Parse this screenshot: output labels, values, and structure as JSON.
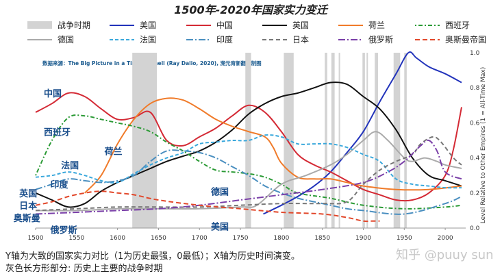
{
  "chart_data": {
    "type": "line",
    "title": "1500年-2020年国家实力变迁",
    "source_note": "数据来源：The Big Picture in a Tiny Nutshell (Ray Dalio, 2020), 溯元育新翻译制图",
    "ylabel": "Level Relative to Other Empires (1 = All-Time Max)",
    "xlim": [
      1500,
      2025
    ],
    "ylim": [
      0,
      1.0
    ],
    "x_ticks": [
      "1500",
      "1550",
      "1600",
      "1650",
      "1700",
      "1750",
      "1800",
      "1850",
      "1900",
      "1950",
      "2000"
    ],
    "y_ticks": [
      "0.0",
      "0.2",
      "0.4",
      "0.6",
      "0.8",
      "1.0"
    ],
    "war_legend_label": "战争时期",
    "war_periods": [
      [
        1618,
        1648
      ],
      [
        1756,
        1763
      ],
      [
        1803,
        1815
      ],
      [
        1853,
        1856
      ],
      [
        1861,
        1865
      ],
      [
        1870,
        1871
      ],
      [
        1899,
        1902
      ],
      [
        1904,
        1905
      ],
      [
        1914,
        1918
      ],
      [
        1937,
        1945
      ],
      [
        1950,
        1953
      ]
    ],
    "series": [
      {
        "name": "美国",
        "color": "#2233bb",
        "dash": "",
        "x": [
          1778,
          1800,
          1820,
          1840,
          1860,
          1880,
          1900,
          1920,
          1940,
          1955,
          1965,
          1980,
          2000,
          2020
        ],
        "y": [
          0.08,
          0.13,
          0.18,
          0.24,
          0.32,
          0.43,
          0.55,
          0.72,
          0.88,
          1.0,
          0.97,
          0.92,
          0.88,
          0.83
        ]
      },
      {
        "name": "中国",
        "color": "#d42a35",
        "dash": "",
        "x": [
          1500,
          1520,
          1540,
          1560,
          1580,
          1600,
          1620,
          1640,
          1660,
          1680,
          1700,
          1720,
          1740,
          1760,
          1780,
          1800,
          1820,
          1840,
          1860,
          1880,
          1900,
          1920,
          1940,
          1960,
          1980,
          2000,
          2010,
          2020
        ],
        "y": [
          0.66,
          0.71,
          0.77,
          0.75,
          0.68,
          0.62,
          0.63,
          0.66,
          0.5,
          0.47,
          0.52,
          0.57,
          0.64,
          0.7,
          0.66,
          0.55,
          0.42,
          0.36,
          0.32,
          0.27,
          0.22,
          0.19,
          0.16,
          0.16,
          0.2,
          0.3,
          0.45,
          0.69
        ]
      },
      {
        "name": "英国",
        "color": "#111111",
        "dash": "",
        "x": [
          1500,
          1520,
          1540,
          1560,
          1580,
          1600,
          1620,
          1640,
          1660,
          1680,
          1700,
          1720,
          1740,
          1760,
          1780,
          1800,
          1820,
          1840,
          1860,
          1880,
          1900,
          1920,
          1940,
          1960,
          1980,
          2000,
          2020
        ],
        "y": [
          0.2,
          0.16,
          0.12,
          0.14,
          0.21,
          0.26,
          0.3,
          0.34,
          0.38,
          0.41,
          0.44,
          0.49,
          0.56,
          0.65,
          0.71,
          0.75,
          0.77,
          0.8,
          0.83,
          0.82,
          0.75,
          0.68,
          0.56,
          0.4,
          0.3,
          0.27,
          0.24
        ]
      },
      {
        "name": "荷兰",
        "color": "#f07b2a",
        "dash": "",
        "x": [
          1560,
          1580,
          1600,
          1620,
          1640,
          1660,
          1680,
          1700,
          1720,
          1740,
          1760,
          1780,
          1790,
          1800,
          1820,
          1840,
          1860,
          1880,
          1900,
          1940,
          1980,
          2020
        ],
        "y": [
          0.2,
          0.3,
          0.48,
          0.62,
          0.71,
          0.74,
          0.73,
          0.68,
          0.62,
          0.58,
          0.55,
          0.52,
          0.46,
          0.37,
          0.29,
          0.28,
          0.28,
          0.26,
          0.24,
          0.22,
          0.22,
          0.24
        ]
      },
      {
        "name": "西班牙",
        "color": "#2a9a35",
        "dash": "2,3,6,3",
        "x": [
          1500,
          1520,
          1540,
          1560,
          1580,
          1600,
          1620,
          1640,
          1660,
          1680,
          1700,
          1720,
          1740,
          1760,
          1780,
          1800,
          1820,
          1860,
          1900,
          1950,
          2000,
          2020
        ],
        "y": [
          0.3,
          0.5,
          0.63,
          0.64,
          0.62,
          0.6,
          0.58,
          0.55,
          0.49,
          0.44,
          0.38,
          0.33,
          0.32,
          0.31,
          0.29,
          0.25,
          0.2,
          0.17,
          0.13,
          0.11,
          0.12,
          0.13
        ]
      },
      {
        "name": "德国",
        "color": "#aaaaaa",
        "dash": "",
        "x": [
          1500,
          1550,
          1600,
          1650,
          1700,
          1750,
          1770,
          1800,
          1830,
          1860,
          1880,
          1900,
          1915,
          1930,
          1950,
          1960,
          1975,
          1990,
          2000,
          2020
        ],
        "y": [
          0.1,
          0.1,
          0.11,
          0.11,
          0.11,
          0.12,
          0.13,
          0.25,
          0.3,
          0.36,
          0.42,
          0.5,
          0.55,
          0.5,
          0.4,
          0.38,
          0.4,
          0.38,
          0.36,
          0.34
        ]
      },
      {
        "name": "法国",
        "color": "#3aa8dc",
        "dash": "5,3",
        "x": [
          1500,
          1520,
          1540,
          1560,
          1580,
          1600,
          1620,
          1640,
          1660,
          1680,
          1700,
          1720,
          1740,
          1760,
          1780,
          1800,
          1820,
          1840,
          1860,
          1880,
          1900,
          1920,
          1940,
          1960,
          1980,
          2000,
          2020
        ],
        "y": [
          0.29,
          0.3,
          0.32,
          0.3,
          0.27,
          0.26,
          0.31,
          0.36,
          0.4,
          0.43,
          0.48,
          0.49,
          0.5,
          0.5,
          0.53,
          0.52,
          0.48,
          0.48,
          0.48,
          0.46,
          0.42,
          0.38,
          0.28,
          0.25,
          0.24,
          0.23,
          0.23
        ]
      },
      {
        "name": "印度",
        "color": "#4a8fc0",
        "dash": "10,3,2,3",
        "x": [
          1500,
          1520,
          1540,
          1560,
          1580,
          1600,
          1620,
          1640,
          1660,
          1680,
          1700,
          1720,
          1740,
          1760,
          1780,
          1800,
          1820,
          1840,
          1860,
          1880,
          1900,
          1950,
          2000,
          2020
        ],
        "y": [
          0.22,
          0.25,
          0.28,
          0.27,
          0.26,
          0.27,
          0.3,
          0.38,
          0.44,
          0.44,
          0.43,
          0.4,
          0.35,
          0.3,
          0.24,
          0.2,
          0.17,
          0.15,
          0.13,
          0.11,
          0.1,
          0.08,
          0.14,
          0.18
        ]
      },
      {
        "name": "日本",
        "color": "#777777",
        "dash": "6,4",
        "x": [
          1500,
          1550,
          1600,
          1650,
          1700,
          1750,
          1800,
          1850,
          1880,
          1900,
          1920,
          1940,
          1960,
          1970,
          1985,
          1995,
          2010,
          2020
        ],
        "y": [
          0.1,
          0.11,
          0.12,
          0.12,
          0.12,
          0.13,
          0.14,
          0.14,
          0.15,
          0.25,
          0.33,
          0.38,
          0.42,
          0.48,
          0.52,
          0.49,
          0.4,
          0.36
        ]
      },
      {
        "name": "俄罗斯",
        "color": "#7a3fa8",
        "dash": "10,3,2,3",
        "x": [
          1500,
          1550,
          1600,
          1650,
          1700,
          1750,
          1800,
          1850,
          1900,
          1930,
          1950,
          1970,
          1980,
          1990,
          2000,
          2020
        ],
        "y": [
          0.08,
          0.09,
          0.1,
          0.11,
          0.13,
          0.16,
          0.19,
          0.22,
          0.26,
          0.32,
          0.38,
          0.47,
          0.5,
          0.44,
          0.32,
          0.28
        ]
      },
      {
        "name": "奥斯曼帝国",
        "color": "#e2472a",
        "dash": "7,4",
        "x": [
          1500,
          1520,
          1540,
          1560,
          1580,
          1600,
          1620,
          1650,
          1700,
          1750,
          1800,
          1850,
          1880,
          1900,
          1910,
          1920
        ],
        "y": [
          0.13,
          0.15,
          0.18,
          0.2,
          0.21,
          0.2,
          0.19,
          0.16,
          0.13,
          0.11,
          0.09,
          0.08,
          0.06,
          0.04,
          0.04,
          0.04
        ]
      }
    ],
    "annotations": [
      {
        "text": "中国",
        "x": 1510,
        "y": 0.75
      },
      {
        "text": "西班牙",
        "x": 1510,
        "y": 0.53
      },
      {
        "text": "荷兰",
        "x": 1584,
        "y": 0.42
      },
      {
        "text": "法国",
        "x": 1531,
        "y": 0.34
      },
      {
        "text": "印度",
        "x": 1518,
        "y": 0.23
      },
      {
        "text": "英国",
        "x": 1480,
        "y": 0.18
      },
      {
        "text": "日本",
        "x": 1480,
        "y": 0.11
      },
      {
        "text": "奥斯曼",
        "x": 1473,
        "y": 0.04
      },
      {
        "text": "俄罗斯",
        "x": 1518,
        "y": -0.03
      },
      {
        "text": "德国",
        "x": 1714,
        "y": 0.19
      },
      {
        "text": "美国",
        "x": 1714,
        "y": -0.01
      }
    ],
    "footer_lines": [
      "Y轴为大致的国家实力对比（1为历史最强，0最低）；X轴为历史时间演变。",
      "灰色长方形部分: 历史上主要的战争时期"
    ],
    "watermark": "知乎 @puuy sun"
  }
}
